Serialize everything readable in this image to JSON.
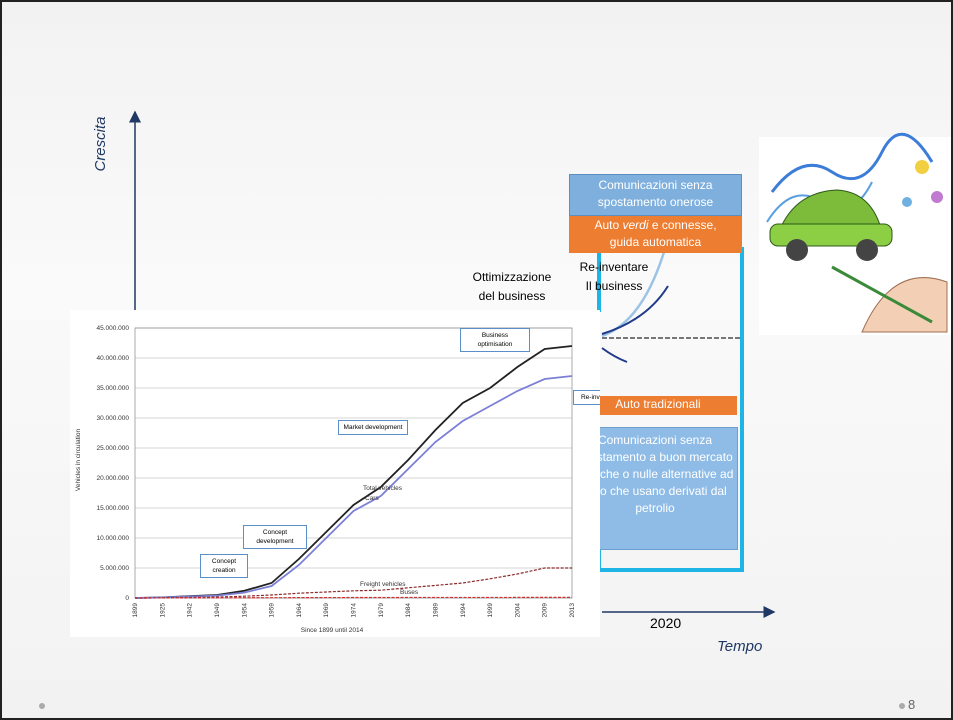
{
  "slide": {
    "y_axis_label": "Crescita",
    "x_axis_label": "Tempo",
    "year": "2020",
    "optimisation": [
      "Ottimizzazione",
      "del business"
    ],
    "reinvent": [
      "Re-inventare",
      "Il business"
    ],
    "box_top": [
      "Comunicazioni senza",
      "spostamento onerose"
    ],
    "box_green": [
      "Auto",
      "verdi",
      "e connesse,",
      "guida automatica"
    ],
    "box_traditional": "Auto tradizionali",
    "box_bottom": "Comunicazioni senza spostamento a buon mercato e poche o nulle alternative ad auto che usano derivati dal petrolio",
    "page_number": "8"
  },
  "chart_data": {
    "type": "line",
    "y_label": "Vehicles in circulation",
    "x_label": "Since 1899 until 2014",
    "categories": [
      "1899",
      "1925",
      "1942",
      "1949",
      "1954",
      "1959",
      "1964",
      "1969",
      "1974",
      "1979",
      "1984",
      "1989",
      "1994",
      "1999",
      "2004",
      "2009",
      "2013"
    ],
    "series": [
      {
        "name": "Total vehicles",
        "color": "#222222",
        "values": [
          0,
          100000,
          300000,
          500000,
          1200000,
          2500000,
          6500000,
          11000000,
          15500000,
          18500000,
          23000000,
          28000000,
          32500000,
          35000000,
          38500000,
          41500000,
          42000000
        ]
      },
      {
        "name": "Cars",
        "color": "#7b7fd6",
        "values": [
          0,
          80000,
          250000,
          400000,
          900000,
          2000000,
          5500000,
          10000000,
          14500000,
          17000000,
          21500000,
          26000000,
          29500000,
          32000000,
          34500000,
          36500000,
          37000000
        ]
      },
      {
        "name": "Freight vehicles",
        "color": "#8b2a2a",
        "values": [
          0,
          50000,
          100000,
          150000,
          300000,
          500000,
          800000,
          1000000,
          1200000,
          1300000,
          1700000,
          2100000,
          2500000,
          3200000,
          4000000,
          5000000,
          5000000
        ]
      },
      {
        "name": "Buses",
        "color": "#d03030",
        "values": [
          0,
          10000,
          20000,
          30000,
          40000,
          50000,
          60000,
          70000,
          80000,
          80000,
          90000,
          90000,
          90000,
          90000,
          100000,
          100000,
          100000
        ]
      }
    ],
    "ylim": [
      0,
      45000000
    ],
    "yticks": [
      0,
      {
        "value": 5000000,
        "label": "5.000.000"
      },
      {
        "value": 10000000,
        "label": "10.000.000"
      },
      {
        "value": 15000000,
        "label": "15.000.000"
      },
      {
        "value": 20000000,
        "label": "20.000.000"
      },
      {
        "value": 25000000,
        "label": "25.000.000"
      },
      {
        "value": 30000000,
        "label": "30.000.000"
      },
      {
        "value": 35000000,
        "label": "35.000.000"
      },
      {
        "value": 40000000,
        "label": "40.000.000"
      },
      {
        "value": 45000000,
        "label": "45.000.000"
      }
    ],
    "grid": true,
    "annotations": [
      "Concept creation",
      "Concept development",
      "Market development",
      "Business optimisation",
      "Re-invent busines"
    ]
  }
}
